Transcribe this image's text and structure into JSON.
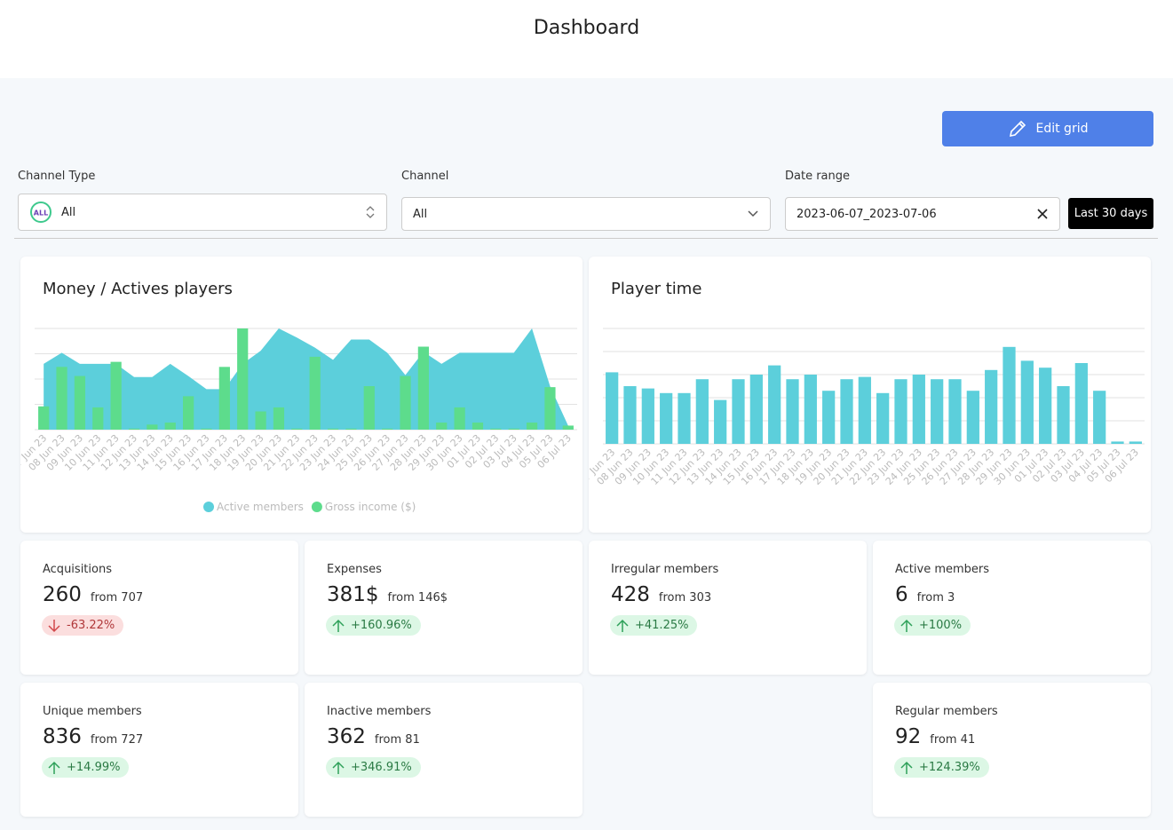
{
  "header": {
    "title": "Dashboard"
  },
  "toolbar": {
    "edit_button": "Edit grid"
  },
  "filters": [
    {
      "label": "Channel Type",
      "value": "All",
      "icon_text": "ALL"
    },
    {
      "label": "Channel",
      "value": "All"
    },
    {
      "label": "Date range",
      "value": "2023-06-07_2023-07-06",
      "preset_button": "Last 30 days"
    }
  ],
  "charts": [
    {
      "chart_data": {
        "type": "area-bar",
        "title": "Money / Actives players",
        "categories": [
          "07 Jun 23",
          "08 Jun 23",
          "09 Jun 23",
          "10 Jun 23",
          "11 Jun 23",
          "12 Jun 23",
          "13 Jun 23",
          "14 Jun 23",
          "15 Jun 23",
          "16 Jun 23",
          "17 Jun 23",
          "18 Jun 23",
          "19 Jun 23",
          "20 Jun 23",
          "21 Jun 23",
          "22 Jun 23",
          "23 Jun 23",
          "24 Jun 23",
          "25 Jun 23",
          "26 Jun 23",
          "27 Jun 23",
          "28 Jun 23",
          "29 Jun 23",
          "30 Jun 23",
          "01 Jul 23",
          "02 Jul 23",
          "03 Jul 23",
          "04 Jul 23",
          "05 Jul 23",
          "06 Jul 23"
        ],
        "series": [
          {
            "name": "Active members",
            "color": "#5ccfdb",
            "render": "area",
            "values": [
              65,
              76,
              65,
              65,
              65,
              52,
              52,
              65,
              53,
              40,
              40,
              65,
              78,
              100,
              91,
              81,
              69,
              89,
              89,
              76,
              54,
              77,
              65,
              76,
              76,
              76,
              76,
              100,
              43,
              4
            ]
          },
          {
            "name": "Gross income ($)",
            "color": "#5ddc8c",
            "render": "bar",
            "values": [
              23,
              62,
              53,
              22,
              67,
              1,
              5,
              7,
              33,
              1,
              62,
              100,
              18,
              22,
              1,
              72,
              1,
              1,
              43,
              1,
              53,
              82,
              7,
              22,
              7,
              1,
              1,
              7,
              42,
              4
            ]
          }
        ],
        "ylim": [
          0,
          100
        ],
        "yticks": [
          0,
          25,
          50,
          75,
          100
        ],
        "grid": true,
        "legend": "bottom"
      }
    },
    {
      "chart_data": {
        "type": "bar",
        "title": "Player time",
        "categories": [
          "07 Jun 23",
          "08 Jun 23",
          "09 Jun 23",
          "10 Jun 23",
          "11 Jun 23",
          "12 Jun 23",
          "13 Jun 23",
          "14 Jun 23",
          "15 Jun 23",
          "16 Jun 23",
          "17 Jun 23",
          "18 Jun 23",
          "19 Jun 23",
          "20 Jun 23",
          "21 Jun 23",
          "22 Jun 23",
          "23 Jun 23",
          "24 Jun 23",
          "25 Jun 23",
          "26 Jun 23",
          "27 Jun 23",
          "28 Jun 23",
          "29 Jun 23",
          "30 Jun 23",
          "01 Jul 23",
          "02 Jul 23",
          "03 Jul 23",
          "04 Jul 23",
          "05 Jul 23",
          "06 Jul 23"
        ],
        "values": [
          3.1,
          2.5,
          2.4,
          2.2,
          2.2,
          2.8,
          1.9,
          2.8,
          3.0,
          3.4,
          2.8,
          3.0,
          2.3,
          2.8,
          2.9,
          2.2,
          2.8,
          3.0,
          2.8,
          2.8,
          2.3,
          3.2,
          4.2,
          3.6,
          3.3,
          2.5,
          3.5,
          2.3,
          0.1,
          0.1
        ],
        "color": "#5ccfdb",
        "ylim": [
          0,
          5
        ],
        "yticks": [
          0,
          1,
          2,
          3,
          4,
          5
        ],
        "grid": true
      }
    }
  ],
  "stats": [
    {
      "title": "Acquisitions",
      "value": "260",
      "from": "from 707",
      "change": "-63.22%",
      "trend": "down",
      "slot": 0
    },
    {
      "title": "Expenses",
      "value": "381$",
      "from": "from 146$",
      "change": "+160.96%",
      "trend": "up",
      "slot": 1
    },
    {
      "title": "Irregular members",
      "value": "428",
      "from": "from 303",
      "change": "+41.25%",
      "trend": "up",
      "slot": 2
    },
    {
      "title": "Active members",
      "value": "6",
      "from": "from 3",
      "change": "+100%",
      "trend": "up",
      "slot": 3
    },
    {
      "title": "Unique members",
      "value": "836",
      "from": "from 727",
      "change": "+14.99%",
      "trend": "up",
      "slot": 4
    },
    {
      "title": "Inactive members",
      "value": "362",
      "from": "from 81",
      "change": "+346.91%",
      "trend": "up",
      "slot": 5
    },
    {
      "title": "Regular members",
      "value": "92",
      "from": "from 41",
      "change": "+124.39%",
      "trend": "up",
      "slot": 7
    }
  ]
}
